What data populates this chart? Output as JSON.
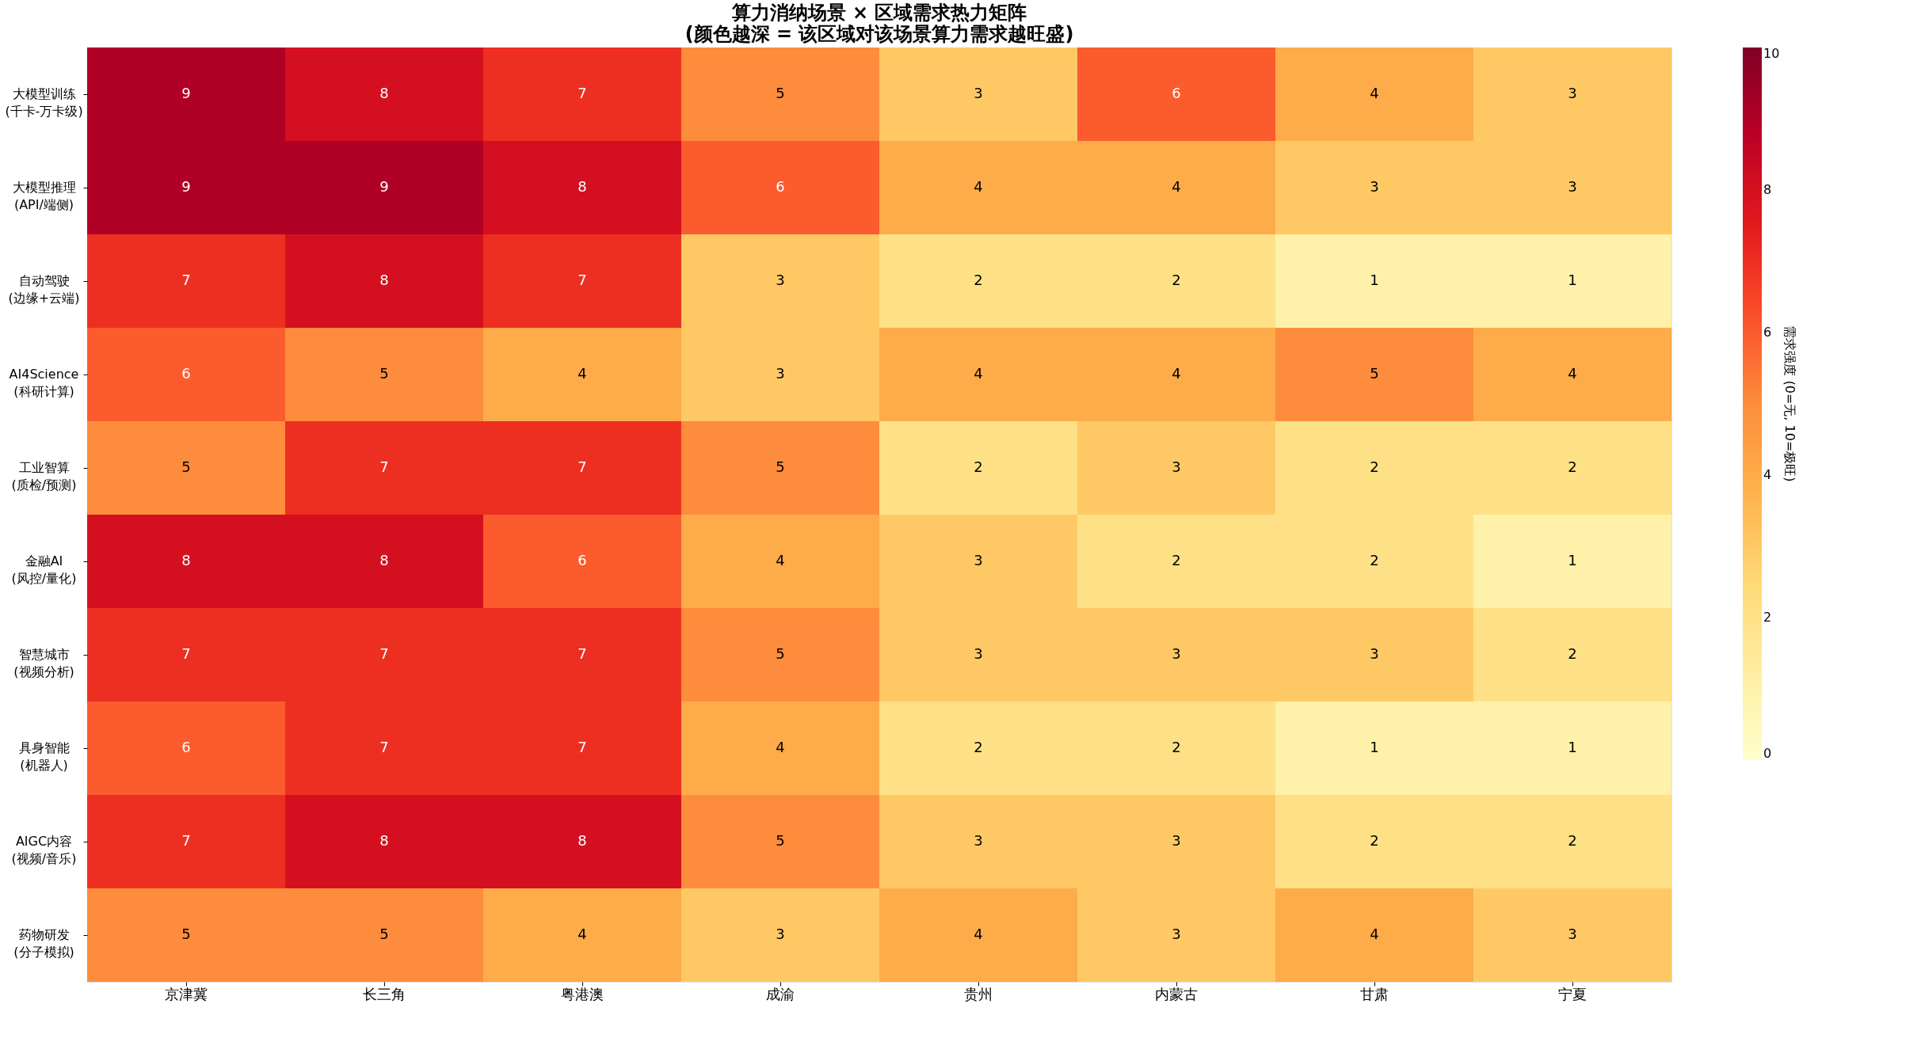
{
  "chart_data": {
    "type": "heatmap",
    "title": "算力消纳场景 × 区域需求热力矩阵",
    "subtitle": "(颜色越深 = 该区域对该场景算力需求越旺盛)",
    "clabel": "需求强度 (0=无, 10=极旺)",
    "categories": [
      "京津冀",
      "长三角",
      "粤港澳",
      "成渝",
      "贵州",
      "内蒙古",
      "甘肃",
      "宁夏"
    ],
    "y_categories": [
      "大模型训练\n(千卡-万卡级)",
      "大模型推理\n(API/端侧)",
      "自动驾驶\n(边缘+云端)",
      "AI4Science\n(科研计算)",
      "工业智算\n(质检/预测)",
      "金融AI\n(风控/量化)",
      "智慧城市\n(视频分析)",
      "具身智能\n(机器人)",
      "AIGC内容\n(视频/音乐)",
      "药物研发\n(分子模拟)"
    ],
    "cells": [
      [
        9,
        8,
        7,
        5,
        3,
        6,
        4,
        3
      ],
      [
        9,
        9,
        8,
        6,
        4,
        4,
        3,
        3
      ],
      [
        7,
        8,
        7,
        3,
        2,
        2,
        1,
        1
      ],
      [
        6,
        5,
        4,
        3,
        4,
        4,
        5,
        4
      ],
      [
        5,
        7,
        7,
        5,
        2,
        3,
        2,
        2
      ],
      [
        8,
        8,
        6,
        4,
        3,
        2,
        2,
        1
      ],
      [
        7,
        7,
        7,
        5,
        3,
        3,
        3,
        2
      ],
      [
        6,
        7,
        7,
        4,
        2,
        2,
        1,
        1
      ],
      [
        7,
        8,
        8,
        5,
        3,
        3,
        2,
        2
      ],
      [
        5,
        5,
        4,
        3,
        4,
        3,
        4,
        3
      ]
    ],
    "clim": [
      0,
      10
    ],
    "cticks": [
      0,
      2,
      4,
      6,
      8,
      10
    ],
    "data_labels": true
  }
}
